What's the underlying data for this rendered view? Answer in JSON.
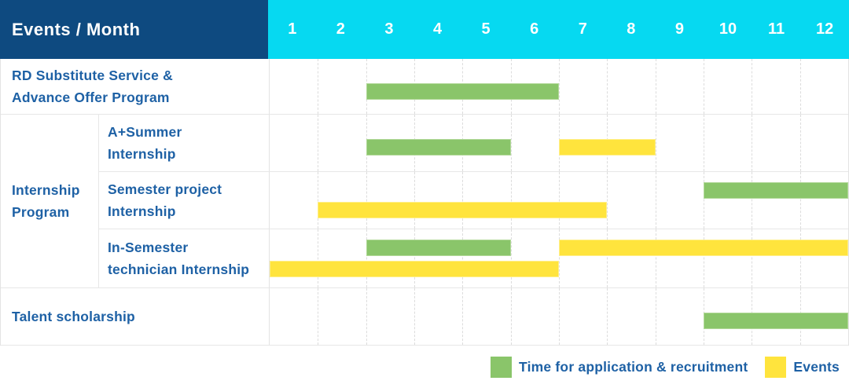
{
  "header": {
    "title": "Events / Month",
    "months": [
      "1",
      "2",
      "3",
      "4",
      "5",
      "6",
      "7",
      "8",
      "9",
      "10",
      "11",
      "12"
    ]
  },
  "table": {
    "group_label": "Internship\nProgram",
    "rows": [
      {
        "label": "RD Substitute Service &\nAdvance Offer Program"
      },
      {
        "label": "A+Summer\nInternship"
      },
      {
        "label": "Semester project\nInternship"
      },
      {
        "label": "In-Semester\ntechnician Internship"
      },
      {
        "label": "Talent scholarship"
      }
    ]
  },
  "legend": [
    {
      "label": "Time for application & recruitment",
      "color": "#8ac56a"
    },
    {
      "label": "Events",
      "color": "#ffe43d"
    }
  ],
  "colors": {
    "header_bg": "#0e4a80",
    "months_bg": "#06d9f1",
    "text_blue": "#1e61a5",
    "recruitment_green": "#8ac56a",
    "events_yellow": "#ffe43d"
  },
  "chart_data": {
    "type": "gantt",
    "title": "Events / Month",
    "x_axis": {
      "label": "Month",
      "ticks": [
        1,
        2,
        3,
        4,
        5,
        6,
        7,
        8,
        9,
        10,
        11,
        12
      ],
      "range": [
        1,
        12
      ]
    },
    "legend": [
      "Time for application & recruitment",
      "Events"
    ],
    "legend_position": "bottom-right",
    "grid": "vertical-dashed",
    "rows": [
      {
        "name": "RD Substitute Service & Advance Offer Program",
        "group": null,
        "bars": [
          {
            "series": "Time for application & recruitment",
            "start_month": 3,
            "end_month": 6,
            "lane": "single"
          }
        ]
      },
      {
        "name": "A+Summer Internship",
        "group": "Internship Program",
        "bars": [
          {
            "series": "Time for application & recruitment",
            "start_month": 3,
            "end_month": 5,
            "lane": "single"
          },
          {
            "series": "Events",
            "start_month": 7,
            "end_month": 8,
            "lane": "single"
          }
        ]
      },
      {
        "name": "Semester project Internship",
        "group": "Internship Program",
        "bars": [
          {
            "series": "Time for application & recruitment",
            "start_month": 10,
            "end_month": 12,
            "lane": "top"
          },
          {
            "series": "Events",
            "start_month": 2,
            "end_month": 7,
            "lane": "bottom"
          }
        ]
      },
      {
        "name": "In-Semester technician Internship",
        "group": "Internship Program",
        "bars": [
          {
            "series": "Time for application & recruitment",
            "start_month": 3,
            "end_month": 5,
            "lane": "top"
          },
          {
            "series": "Events",
            "start_month": 7,
            "end_month": 12,
            "lane": "top"
          },
          {
            "series": "Events",
            "start_month": 1,
            "end_month": 6,
            "lane": "bottom"
          }
        ]
      },
      {
        "name": "Talent scholarship",
        "group": null,
        "bars": [
          {
            "series": "Time for application & recruitment",
            "start_month": 10,
            "end_month": 12,
            "lane": "single"
          }
        ]
      }
    ]
  }
}
